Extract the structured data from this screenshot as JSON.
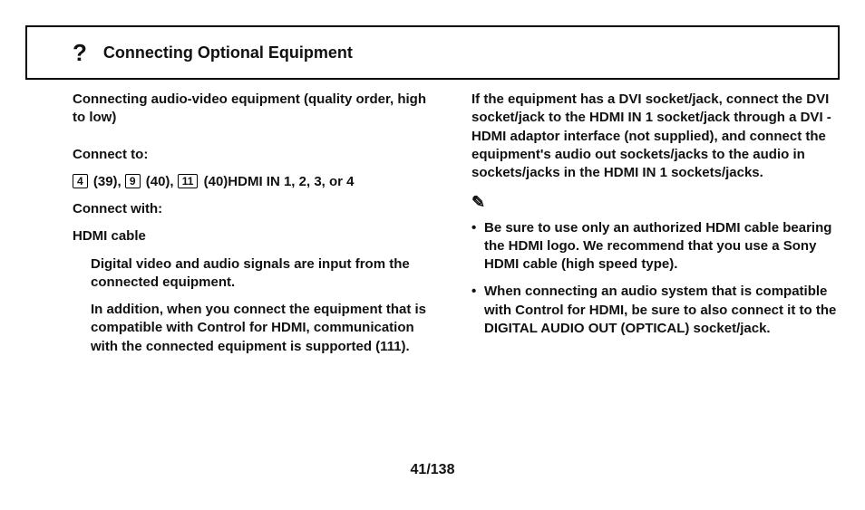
{
  "header": {
    "icon_label": "?",
    "title": "Connecting Optional Equipment"
  },
  "left": {
    "intro": "Connecting audio-video equipment (quality order, high to low)",
    "connect_to_label": "Connect to:",
    "refs": {
      "a_num": "4",
      "a_page": "(39),",
      "b_num": "9",
      "b_page": "(40),",
      "c_num": "11",
      "c_page": "(40)"
    },
    "hdmi_in_text": "HDMI IN 1, 2, 3, or 4",
    "connect_with_label": "Connect with:",
    "hdmi_cable_label": "HDMI cable",
    "para_signals": "Digital video and audio signals are input from the connected equipment.",
    "para_control": "In addition, when you connect the equipment that is compatible with Control for HDMI, communication with the connected equipment is supported (111)."
  },
  "right": {
    "para_dvi": "If the equipment has a DVI socket/jack, connect the DVI socket/jack to the HDMI IN 1 socket/jack through a DVI - HDMI adaptor interface (not supplied), and connect the equipment's audio out sockets/jacks to the audio in sockets/jacks in the HDMI IN 1 sockets/jacks.",
    "note_icon": "✎",
    "bullet1": "Be sure to use only an authorized HDMI cable bearing the HDMI logo. We recommend that you use a Sony HDMI cable (high speed type).",
    "bullet2": "When connecting an audio system that is compatible with Control for HDMI, be sure to also connect it to the DIGITAL AUDIO OUT (OPTICAL) socket/jack."
  },
  "footer": {
    "page": "41/138"
  }
}
